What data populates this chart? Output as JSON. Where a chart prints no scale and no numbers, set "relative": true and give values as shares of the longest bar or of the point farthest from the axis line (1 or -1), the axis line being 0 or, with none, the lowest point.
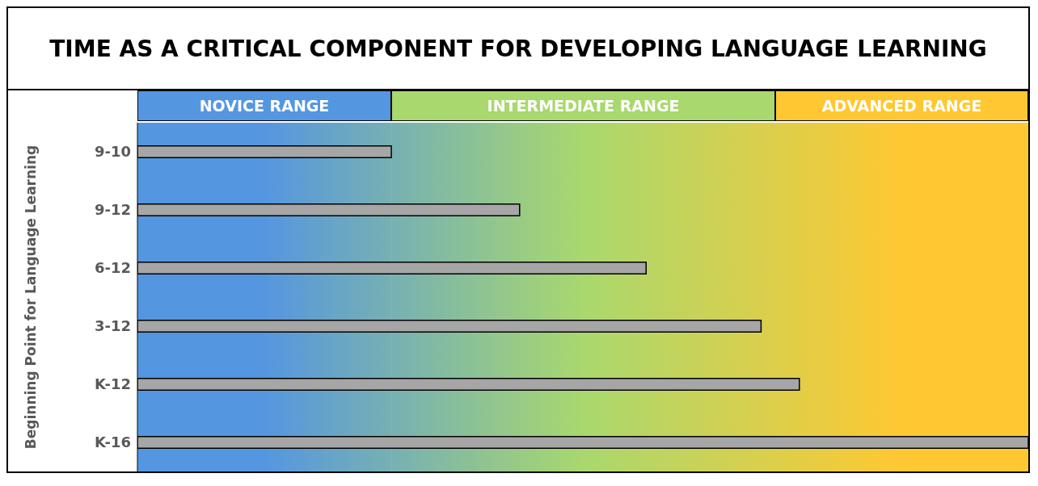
{
  "chart_data": {
    "type": "bar",
    "orientation": "horizontal",
    "relative": true,
    "title": "TIME AS A CRITICAL COMPONENT FOR DEVELOPING LANGUAGE LEARNING",
    "ylabel": "Beginning Point for Language Learning",
    "categories": [
      "9-10",
      "9-12",
      "6-12",
      "3-12",
      "K-12",
      "K-16"
    ],
    "values": [
      0.285,
      0.429,
      0.571,
      0.7,
      0.743,
      1
    ],
    "color": "#a6a6a6",
    "bands": [
      {
        "axis": "x",
        "from": 0,
        "to": 0.285,
        "label": "NOVICE RANGE",
        "color": "#5596e0"
      },
      {
        "axis": "x",
        "from": 0.285,
        "to": 0.716,
        "label": "INTERMEDIATE RANGE",
        "color": "#a9d86e"
      },
      {
        "axis": "x",
        "from": 0.716,
        "to": 1,
        "label": "ADVANCED RANGE",
        "color": "#ffc832"
      }
    ]
  }
}
